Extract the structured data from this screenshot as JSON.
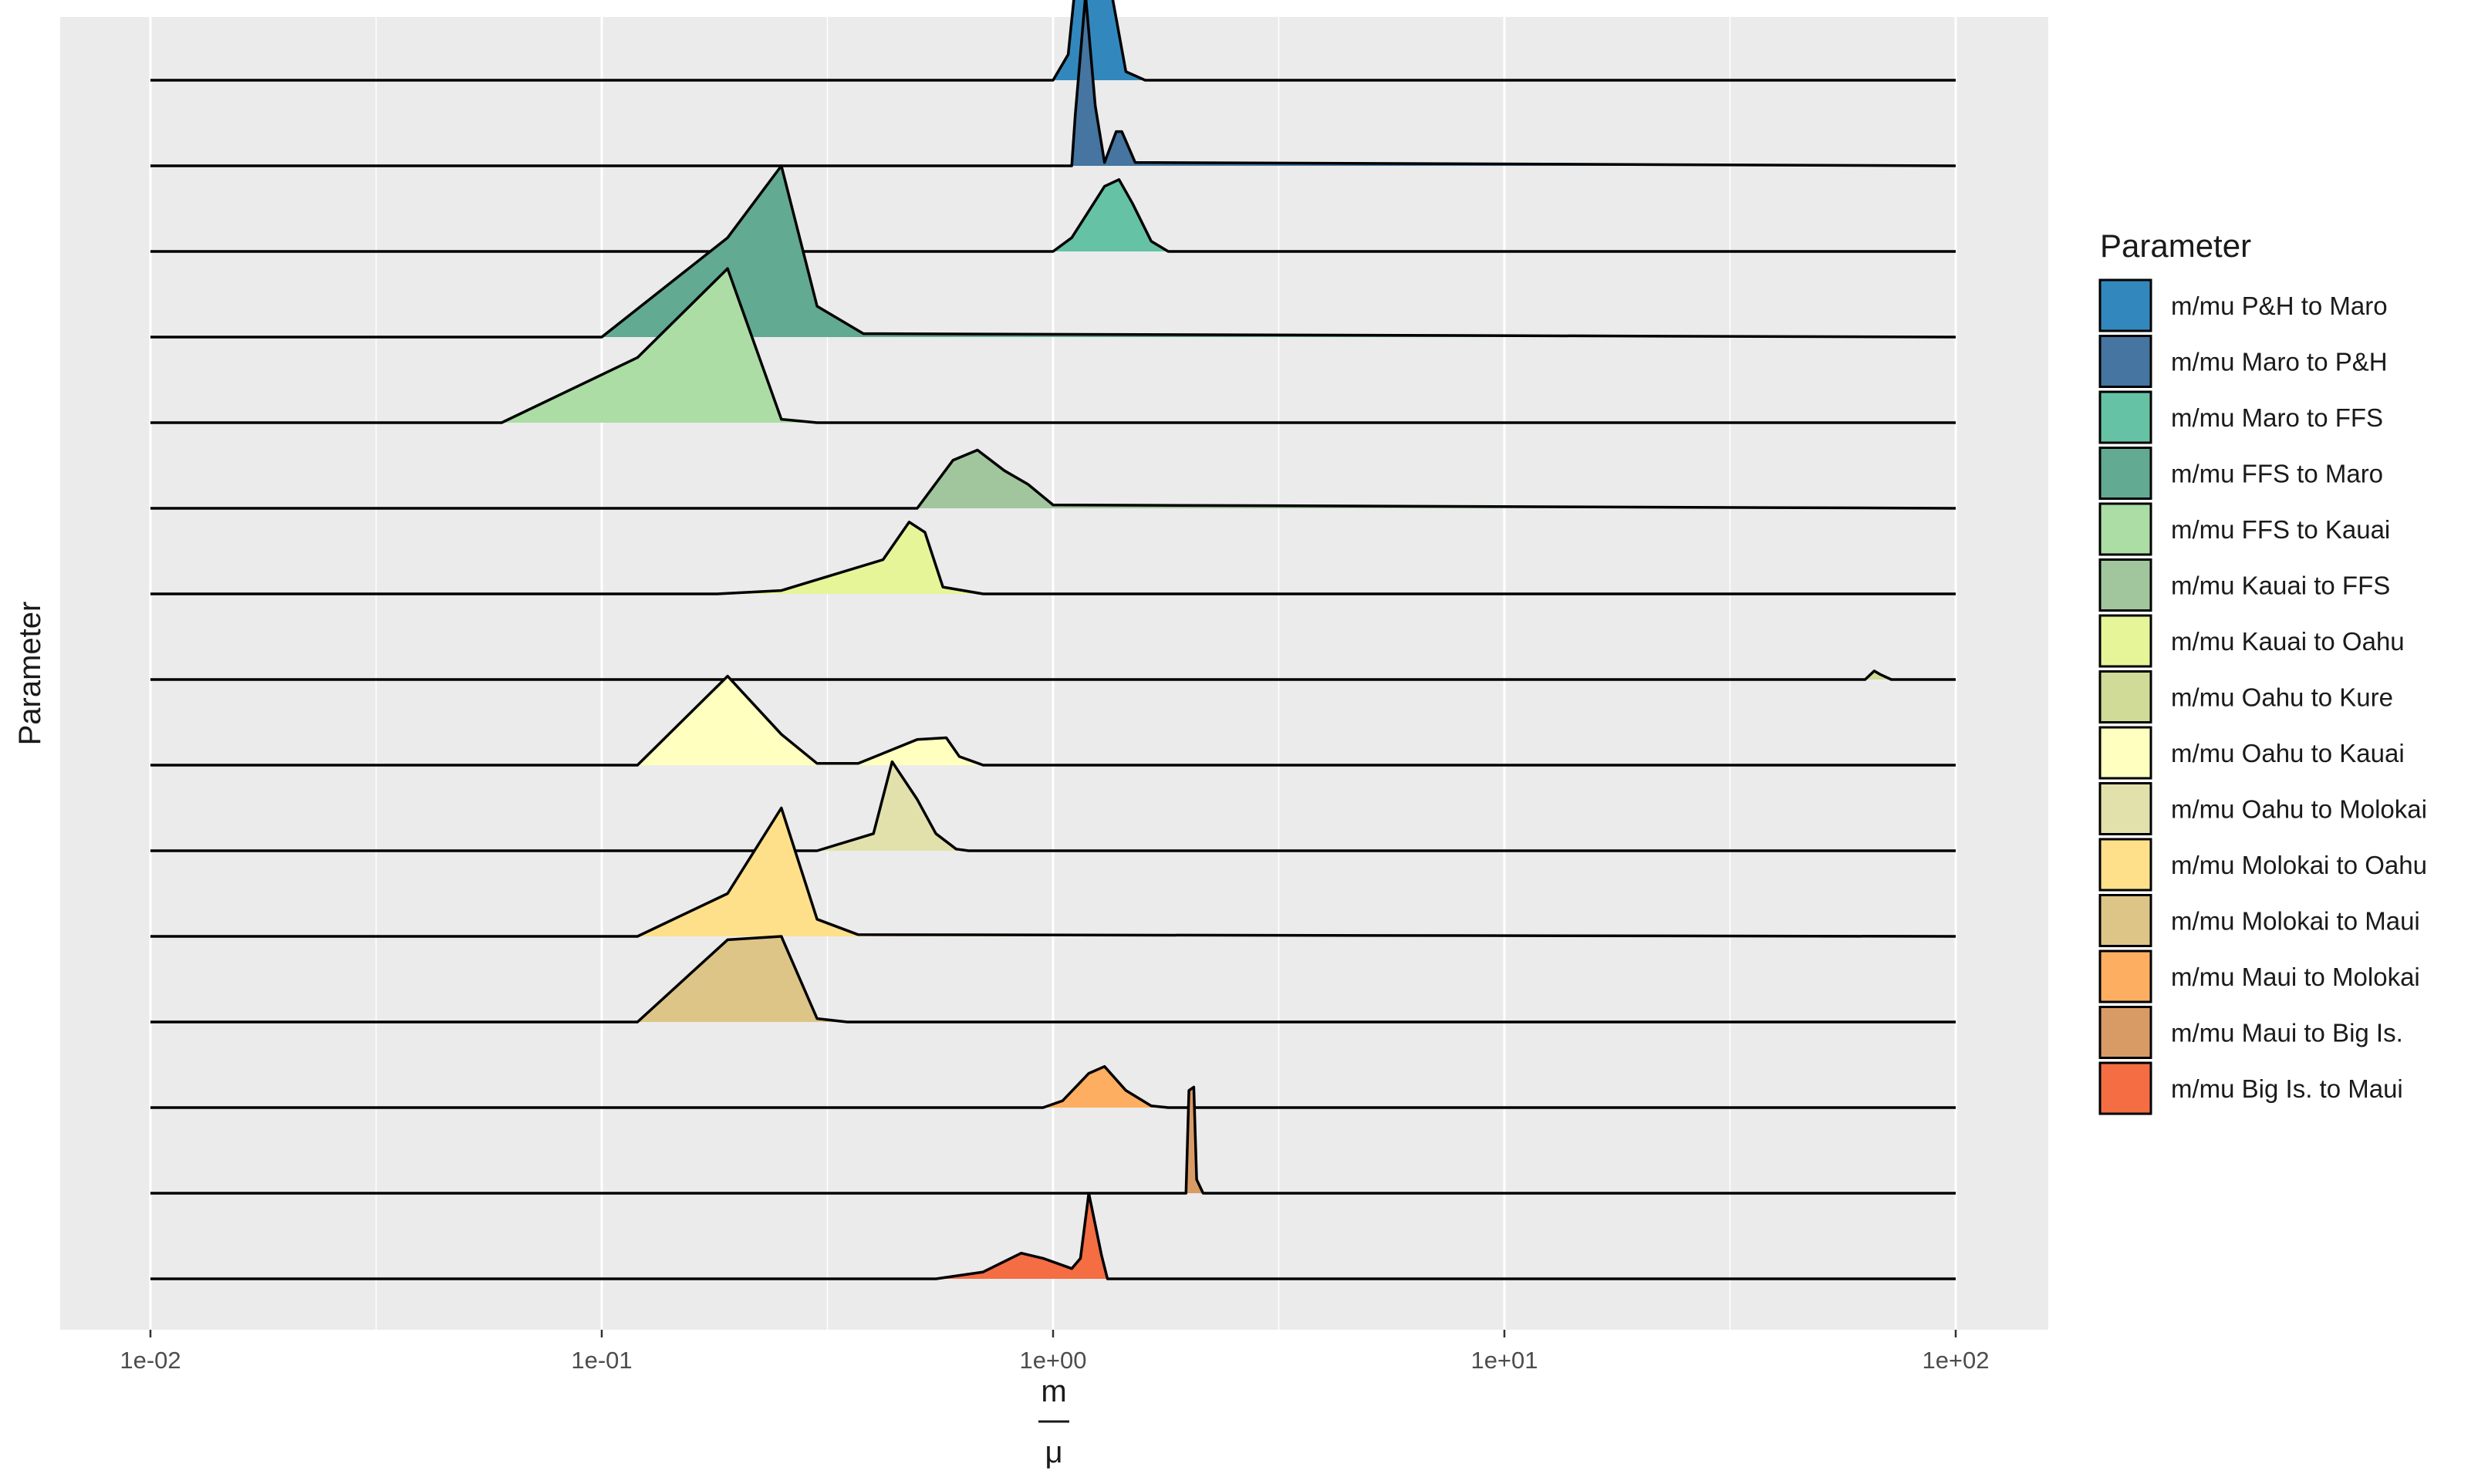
{
  "chart_data": {
    "type": "ridgeline",
    "title": "",
    "xscale": "log10",
    "xlim": [
      0.0063,
      180
    ],
    "xticks": [
      0.01,
      0.1,
      1,
      10,
      100
    ],
    "xtick_labels": [
      "1e-02",
      "1e-01",
      "1e+00",
      "1e+01",
      "1e+02"
    ],
    "xlabel_numerator": "m",
    "xlabel_denominator": "μ",
    "ylabel": "Parameter",
    "legend_title": "Parameter",
    "legend_position": "right",
    "series": [
      {
        "name": "m/mu P&H to Maro",
        "color": "#3288BD",
        "density": [
          [
            0.01,
            0
          ],
          [
            1.0,
            0
          ],
          [
            1.08,
            0.15
          ],
          [
            1.15,
            0.85
          ],
          [
            1.2,
            1.0
          ],
          [
            1.28,
            0.95
          ],
          [
            1.35,
            0.5
          ],
          [
            1.45,
            0.05
          ],
          [
            1.6,
            0
          ],
          [
            100,
            0
          ]
        ]
      },
      {
        "name": "m/mu Maro to P&H",
        "color": "#4575A0",
        "density": [
          [
            0.01,
            0
          ],
          [
            1.1,
            0
          ],
          [
            1.12,
            0.3
          ],
          [
            1.18,
            1.0
          ],
          [
            1.24,
            0.35
          ],
          [
            1.3,
            0.02
          ],
          [
            1.38,
            0.2
          ],
          [
            1.42,
            0.2
          ],
          [
            1.52,
            0.02
          ],
          [
            100,
            0
          ]
        ]
      },
      {
        "name": "m/mu Maro to FFS",
        "color": "#66C2A5",
        "density": [
          [
            0.01,
            0
          ],
          [
            1.0,
            0
          ],
          [
            1.1,
            0.08
          ],
          [
            1.3,
            0.38
          ],
          [
            1.4,
            0.42
          ],
          [
            1.5,
            0.28
          ],
          [
            1.65,
            0.06
          ],
          [
            1.8,
            0
          ],
          [
            100,
            0
          ]
        ]
      },
      {
        "name": "m/mu FFS to Maro",
        "color": "#62AA92",
        "density": [
          [
            0.01,
            0
          ],
          [
            0.1,
            0
          ],
          [
            0.19,
            0.58
          ],
          [
            0.25,
            1.0
          ],
          [
            0.3,
            0.18
          ],
          [
            0.38,
            0.02
          ],
          [
            100,
            0
          ]
        ]
      },
      {
        "name": "m/mu FFS to Kauai",
        "color": "#ABDDA4",
        "density": [
          [
            0.01,
            0
          ],
          [
            0.06,
            0
          ],
          [
            0.12,
            0.38
          ],
          [
            0.19,
            0.9
          ],
          [
            0.25,
            0.02
          ],
          [
            0.3,
            0
          ],
          [
            100,
            0
          ]
        ]
      },
      {
        "name": "m/mu Kauai to FFS",
        "color": "#A1C69D",
        "density": [
          [
            0.01,
            0
          ],
          [
            0.5,
            0
          ],
          [
            0.6,
            0.28
          ],
          [
            0.68,
            0.34
          ],
          [
            0.78,
            0.22
          ],
          [
            0.88,
            0.14
          ],
          [
            1.0,
            0.02
          ],
          [
            100,
            0
          ]
        ]
      },
      {
        "name": "m/mu Kauai to Oahu",
        "color": "#E6F598",
        "density": [
          [
            0.01,
            0
          ],
          [
            0.18,
            0
          ],
          [
            0.25,
            0.02
          ],
          [
            0.42,
            0.2
          ],
          [
            0.48,
            0.42
          ],
          [
            0.52,
            0.36
          ],
          [
            0.57,
            0.04
          ],
          [
            0.7,
            0
          ],
          [
            100,
            0
          ]
        ]
      },
      {
        "name": "m/mu Oahu to Kure",
        "color": "#CFDB97",
        "density": [
          [
            0.01,
            0
          ],
          [
            63,
            0
          ],
          [
            66,
            0.05
          ],
          [
            68,
            0.03
          ],
          [
            72,
            0
          ],
          [
            100,
            0
          ]
        ]
      },
      {
        "name": "m/mu Oahu to Kauai",
        "color": "#FFFFBF",
        "density": [
          [
            0.01,
            0
          ],
          [
            0.12,
            0
          ],
          [
            0.19,
            0.52
          ],
          [
            0.25,
            0.18
          ],
          [
            0.3,
            0.01
          ],
          [
            0.37,
            0.01
          ],
          [
            0.5,
            0.15
          ],
          [
            0.58,
            0.16
          ],
          [
            0.62,
            0.05
          ],
          [
            0.7,
            0
          ],
          [
            100,
            0
          ]
        ]
      },
      {
        "name": "m/mu Oahu to Molokai",
        "color": "#E2E1AC",
        "density": [
          [
            0.01,
            0
          ],
          [
            0.3,
            0
          ],
          [
            0.4,
            0.1
          ],
          [
            0.44,
            0.52
          ],
          [
            0.5,
            0.3
          ],
          [
            0.55,
            0.1
          ],
          [
            0.61,
            0.01
          ],
          [
            0.65,
            0
          ],
          [
            100,
            0
          ]
        ]
      },
      {
        "name": "m/mu Molokai to Oahu",
        "color": "#FEE08B",
        "density": [
          [
            0.01,
            0
          ],
          [
            0.12,
            0
          ],
          [
            0.19,
            0.25
          ],
          [
            0.25,
            0.75
          ],
          [
            0.3,
            0.1
          ],
          [
            0.37,
            0.01
          ],
          [
            100,
            0
          ]
        ]
      },
      {
        "name": "m/mu Molokai to Maui",
        "color": "#DDC587",
        "density": [
          [
            0.01,
            0
          ],
          [
            0.12,
            0
          ],
          [
            0.19,
            0.48
          ],
          [
            0.25,
            0.5
          ],
          [
            0.3,
            0.02
          ],
          [
            0.35,
            0
          ],
          [
            100,
            0
          ]
        ]
      },
      {
        "name": "m/mu Maui to Molokai",
        "color": "#FDAE61",
        "density": [
          [
            0.01,
            0
          ],
          [
            0.95,
            0
          ],
          [
            1.05,
            0.04
          ],
          [
            1.2,
            0.2
          ],
          [
            1.3,
            0.24
          ],
          [
            1.45,
            0.1
          ],
          [
            1.65,
            0.01
          ],
          [
            1.8,
            0
          ],
          [
            100,
            0
          ]
        ]
      },
      {
        "name": "m/mu Maui to Big Is.",
        "color": "#D99B65",
        "density": [
          [
            0.01,
            0
          ],
          [
            1.97,
            0
          ],
          [
            2.0,
            0.6
          ],
          [
            2.05,
            0.62
          ],
          [
            2.08,
            0.08
          ],
          [
            2.15,
            0
          ],
          [
            100,
            0
          ]
        ]
      },
      {
        "name": "m/mu Big Is. to Maui",
        "color": "#F46D43",
        "density": [
          [
            0.01,
            0
          ],
          [
            0.55,
            0
          ],
          [
            0.7,
            0.04
          ],
          [
            0.85,
            0.15
          ],
          [
            0.95,
            0.12
          ],
          [
            1.1,
            0.06
          ],
          [
            1.15,
            0.12
          ],
          [
            1.2,
            0.5
          ],
          [
            1.28,
            0.14
          ],
          [
            1.32,
            0
          ],
          [
            100,
            0
          ]
        ]
      }
    ]
  }
}
